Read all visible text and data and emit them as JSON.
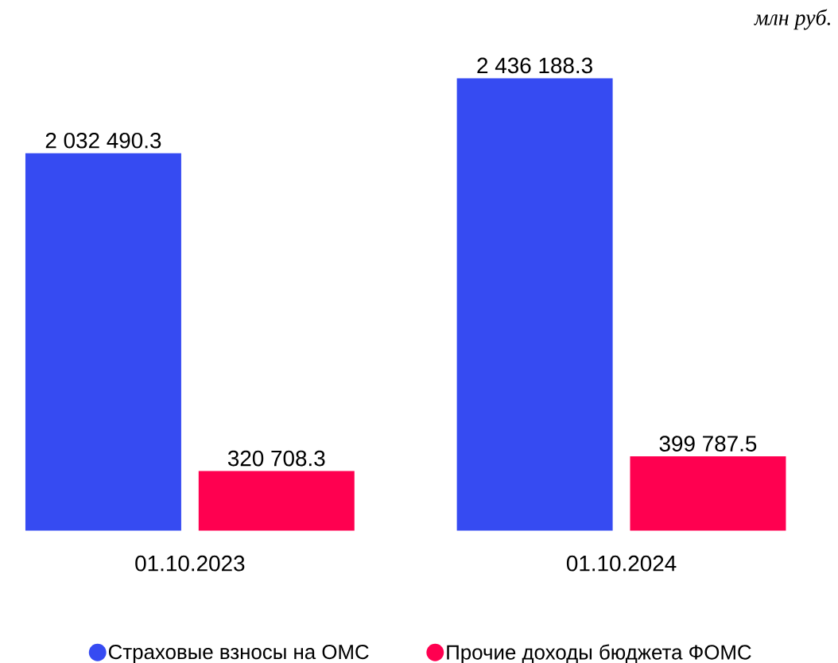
{
  "chart_data": {
    "type": "bar",
    "categories": [
      "01.10.2023",
      "01.10.2024"
    ],
    "series": [
      {
        "name": "Страховые взносы на ОМС",
        "color": "#364bf2",
        "values": [
          2032490.3,
          2436188.3
        ],
        "value_labels": [
          "2 032 490.3",
          "2 436 188.3"
        ]
      },
      {
        "name": "Прочие доходы бюджета ФОМС",
        "color": "#ff0050",
        "values": [
          320708.3,
          399787.5
        ],
        "value_labels": [
          "320 708.3",
          "399 787.5"
        ]
      }
    ],
    "legend": "bottom",
    "annotations": [
      "млн руб."
    ]
  }
}
